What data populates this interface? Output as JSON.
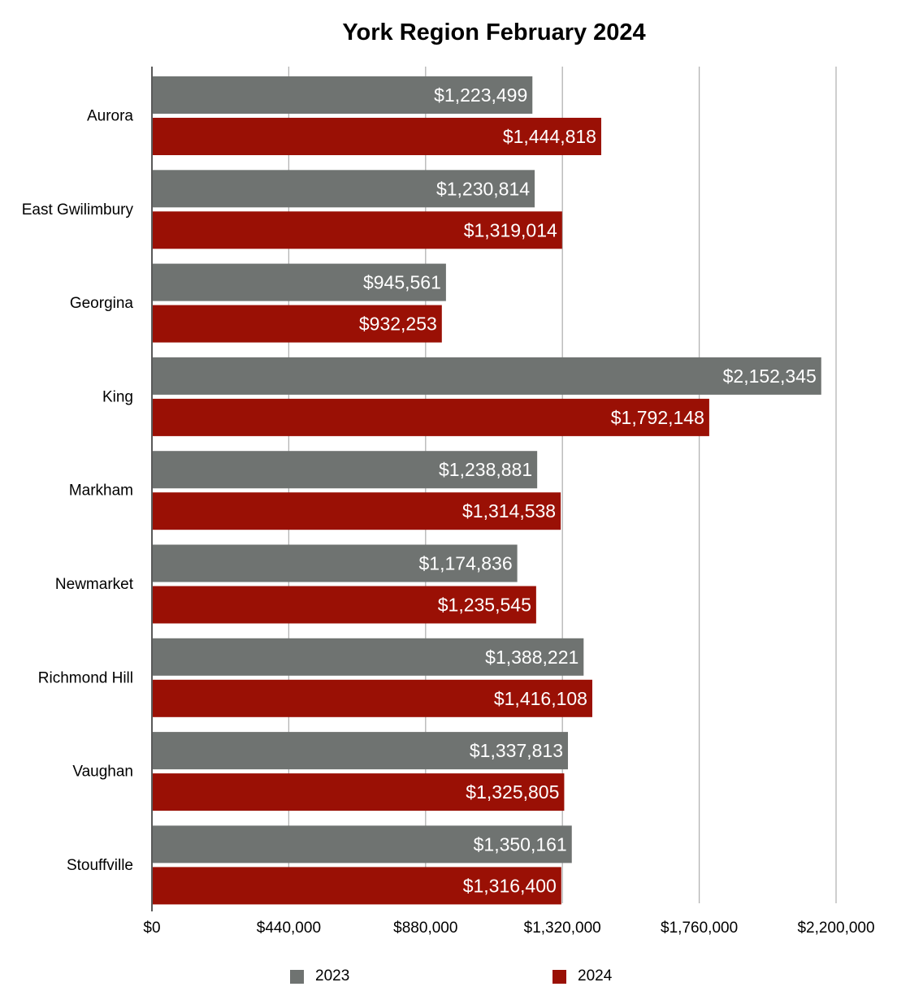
{
  "chart_data": {
    "type": "bar",
    "orientation": "horizontal",
    "title": "York Region February 2024",
    "xlabel": "",
    "ylabel": "",
    "xlim": [
      0,
      2200000
    ],
    "x_ticks": [
      "$0",
      "$440,000",
      "$880,000",
      "$1,320,000",
      "$1,760,000",
      "$2,200,000"
    ],
    "x_tick_values": [
      0,
      440000,
      880000,
      1320000,
      1760000,
      2200000
    ],
    "grid": true,
    "legend_position": "bottom",
    "categories": [
      "Aurora",
      "East Gwilimbury",
      "Georgina",
      "King",
      "Markham",
      "Newmarket",
      "Richmond Hill",
      "Vaughan",
      "Stouffville"
    ],
    "series": [
      {
        "name": "2023",
        "color": "#6f7371",
        "values": [
          1223499,
          1230814,
          945561,
          2152345,
          1238881,
          1174836,
          1388221,
          1337813,
          1350161
        ],
        "labels": [
          "$1,223,499",
          "$1,230,814",
          "$945,561",
          "$2,152,345",
          "$1,238,881",
          "$1,174,836",
          "$1,388,221",
          "$1,337,813",
          "$1,350,161"
        ]
      },
      {
        "name": "2024",
        "color": "#9a1005",
        "values": [
          1444818,
          1319014,
          932253,
          1792148,
          1314538,
          1235545,
          1416108,
          1325805,
          1316400
        ],
        "labels": [
          "$1,444,818",
          "$1,319,014",
          "$932,253",
          "$1,792,148",
          "$1,314,538",
          "$1,235,545",
          "$1,416,108",
          "$1,325,805",
          "$1,316,400"
        ]
      }
    ]
  },
  "colors": {
    "gridline": "#b3b3b3",
    "axis": "#000000"
  }
}
